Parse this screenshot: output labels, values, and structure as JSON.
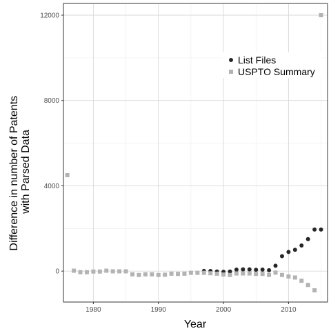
{
  "chart_data": {
    "type": "scatter",
    "xlabel": "Year",
    "ylabel_lines": [
      "Difference in number of Patents",
      "with Parsed Data"
    ],
    "xlim": [
      1975.4,
      2016
    ],
    "ylim": [
      -1450,
      12550
    ],
    "x_ticks": [
      1980,
      1990,
      2000,
      2010
    ],
    "x_tick_labels": [
      "1980",
      "1990",
      "2000",
      "2010"
    ],
    "y_ticks": [
      0,
      4000,
      8000,
      12000
    ],
    "y_tick_labels": [
      "0",
      "4000",
      "8000",
      "12000"
    ],
    "grid": true,
    "legend_position": "top-right",
    "series": [
      {
        "name": "List Files",
        "marker": "circle",
        "color": "#262626",
        "points": [
          [
            1997,
            10
          ],
          [
            1998,
            5
          ],
          [
            1999,
            -20
          ],
          [
            2000,
            -30
          ],
          [
            2001,
            -20
          ],
          [
            2002,
            70
          ],
          [
            2003,
            80
          ],
          [
            2004,
            80
          ],
          [
            2005,
            60
          ],
          [
            2006,
            70
          ],
          [
            2007,
            40
          ],
          [
            2008,
            250
          ],
          [
            2009,
            700
          ],
          [
            2010,
            900
          ],
          [
            2011,
            1000
          ],
          [
            2012,
            1200
          ],
          [
            2013,
            1500
          ],
          [
            2014,
            1950
          ],
          [
            2015,
            1950
          ]
        ]
      },
      {
        "name": "USPTO Summary",
        "marker": "square",
        "color": "#b3b3b3",
        "points": [
          [
            1976,
            4500
          ],
          [
            1977,
            20
          ],
          [
            1978,
            -50
          ],
          [
            1979,
            -50
          ],
          [
            1980,
            -20
          ],
          [
            1981,
            -20
          ],
          [
            1982,
            20
          ],
          [
            1983,
            -10
          ],
          [
            1984,
            -10
          ],
          [
            1985,
            -10
          ],
          [
            1986,
            -150
          ],
          [
            1987,
            -180
          ],
          [
            1988,
            -150
          ],
          [
            1989,
            -150
          ],
          [
            1990,
            -180
          ],
          [
            1991,
            -170
          ],
          [
            1992,
            -120
          ],
          [
            1993,
            -130
          ],
          [
            1994,
            -120
          ],
          [
            1995,
            -80
          ],
          [
            1996,
            -80
          ],
          [
            1997,
            -80
          ],
          [
            1998,
            -100
          ],
          [
            1999,
            -120
          ],
          [
            2000,
            -160
          ],
          [
            2001,
            -180
          ],
          [
            2002,
            -110
          ],
          [
            2003,
            -110
          ],
          [
            2004,
            -110
          ],
          [
            2005,
            -130
          ],
          [
            2006,
            -130
          ],
          [
            2007,
            -180
          ],
          [
            2008,
            -70
          ],
          [
            2009,
            -180
          ],
          [
            2010,
            -250
          ],
          [
            2011,
            -300
          ],
          [
            2012,
            -450
          ],
          [
            2013,
            -650
          ],
          [
            2014,
            -900
          ],
          [
            2015,
            12000
          ]
        ]
      }
    ]
  }
}
